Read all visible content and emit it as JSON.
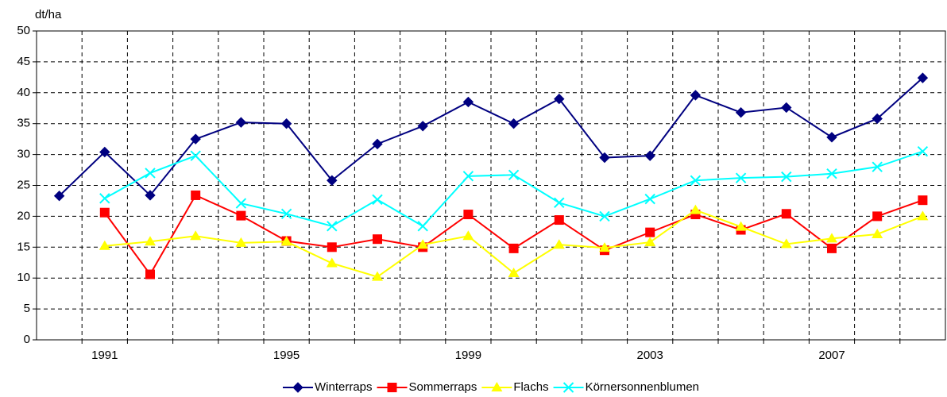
{
  "chart_data": {
    "type": "line",
    "y_axis_label": "dt/ha",
    "categories": [
      null,
      "1991",
      null,
      null,
      null,
      "1995",
      null,
      null,
      null,
      "1999",
      null,
      null,
      null,
      "2003",
      null,
      null,
      null,
      "2007",
      null,
      null
    ],
    "series": [
      {
        "name": "Winterraps",
        "color": "#000080",
        "marker": "diamond",
        "values": [
          23.3,
          30.4,
          23.4,
          32.5,
          35.2,
          35.0,
          25.8,
          31.7,
          34.6,
          38.5,
          35.0,
          39.0,
          29.5,
          29.8,
          39.6,
          36.8,
          37.6,
          32.8,
          35.8,
          42.4
        ]
      },
      {
        "name": "Sommerraps",
        "color": "#ff0000",
        "marker": "square",
        "values": [
          null,
          20.6,
          10.6,
          23.4,
          20.1,
          16.0,
          15.0,
          16.3,
          15.0,
          20.3,
          14.8,
          19.4,
          14.5,
          17.4,
          20.3,
          17.8,
          20.4,
          14.8,
          20.0,
          22.6
        ]
      },
      {
        "name": "Flachs",
        "color": "#ffff00",
        "marker": "triangle",
        "values": [
          null,
          15.2,
          15.9,
          16.8,
          15.7,
          15.9,
          12.4,
          10.2,
          15.4,
          16.8,
          10.8,
          15.4,
          14.9,
          15.8,
          21.0,
          18.3,
          15.5,
          16.4,
          17.1,
          20.0
        ]
      },
      {
        "name": "Körnersonnenblumen",
        "color": "#00ffff",
        "marker": "x",
        "values": [
          null,
          22.9,
          27.0,
          29.8,
          22.1,
          20.4,
          18.4,
          22.7,
          18.4,
          26.5,
          26.7,
          22.2,
          20.0,
          22.8,
          25.8,
          26.2,
          26.4,
          26.9,
          28.0,
          30.5
        ]
      }
    ],
    "ylim": [
      0,
      50
    ],
    "yticks": [
      0,
      5,
      10,
      15,
      20,
      25,
      30,
      35,
      40,
      45,
      50
    ],
    "grid": true,
    "legend": "bottom"
  }
}
